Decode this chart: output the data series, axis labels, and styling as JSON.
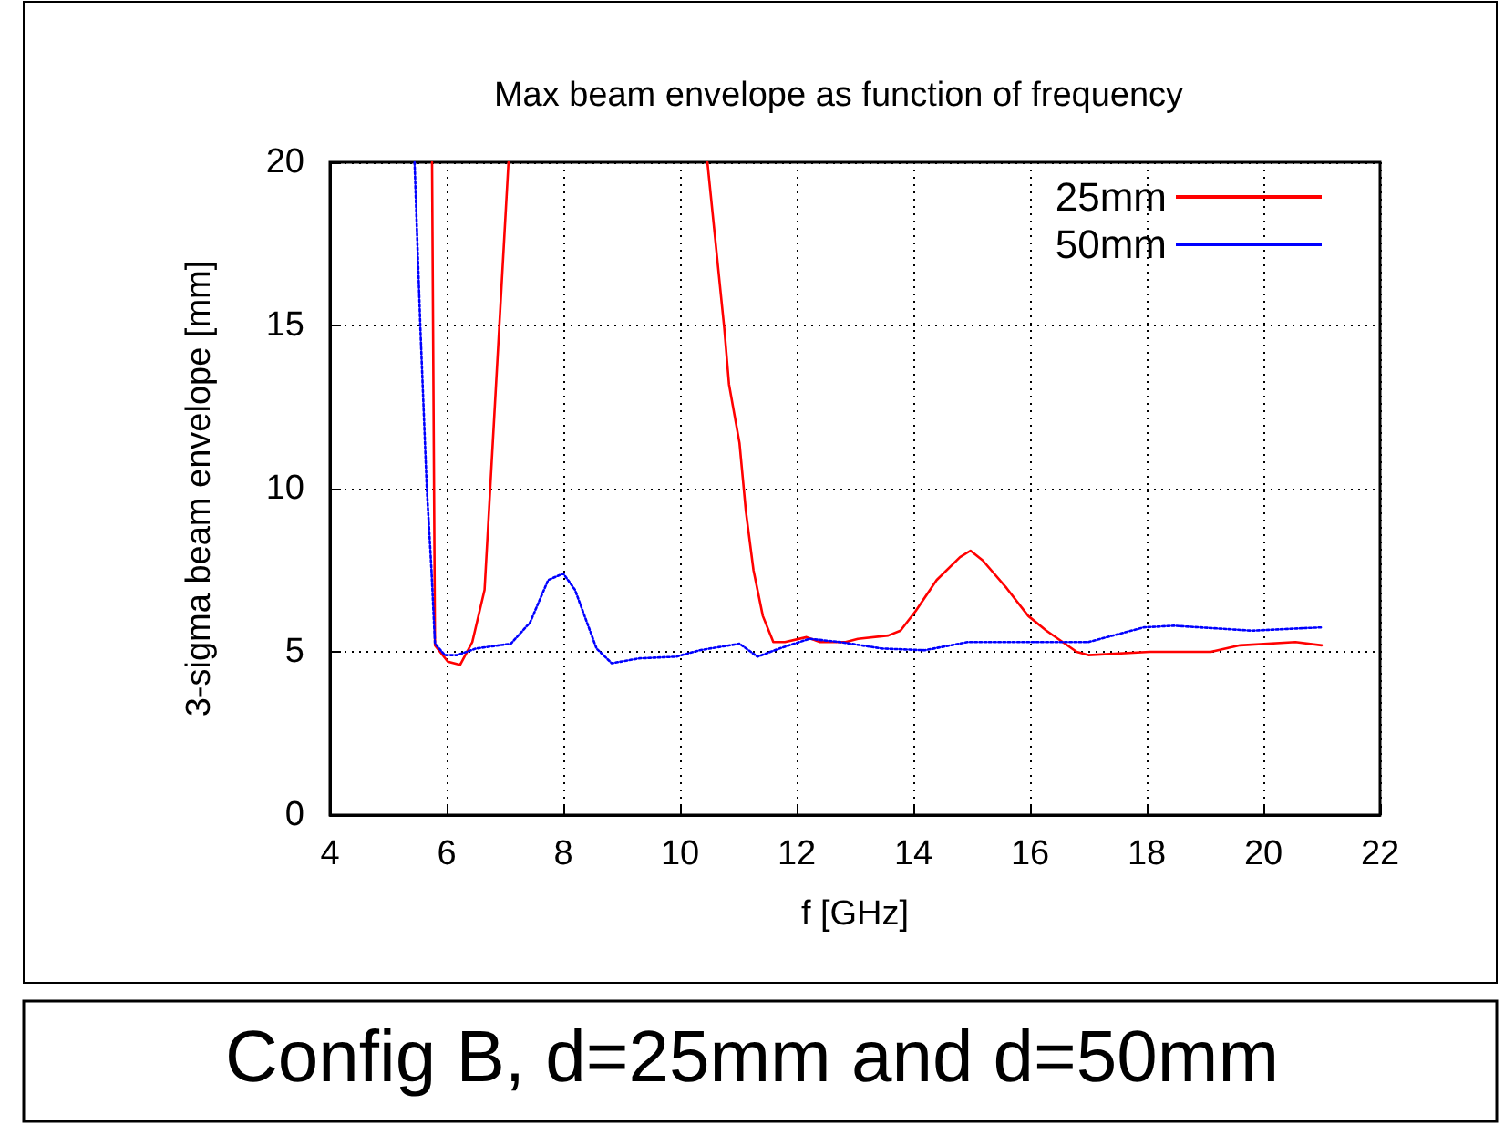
{
  "chart_data": {
    "type": "line",
    "title": "Max beam envelope as function of frequency",
    "xlabel": "f [GHz]",
    "ylabel": "3-sigma beam envelope [mm]",
    "xlim": [
      4,
      22
    ],
    "ylim": [
      0,
      20
    ],
    "xticks": [
      4,
      6,
      8,
      10,
      12,
      14,
      16,
      18,
      20,
      22
    ],
    "yticks": [
      0,
      5,
      10,
      15,
      20
    ],
    "grid": true,
    "legend": "top right",
    "marker": "none",
    "annotations": [
      "Config B, d=25mm and d=50mm"
    ],
    "series": [
      {
        "name": "25mm",
        "color": "#ff0000",
        "line_style": "solid",
        "x": [
          5.75,
          5.8,
          6.02,
          6.23,
          6.44,
          6.65,
          6.9,
          7.06,
          8.8,
          10.47,
          10.76,
          10.84,
          11.02,
          11.13,
          11.26,
          11.42,
          11.6,
          11.8,
          12.17,
          12.4,
          12.84,
          13.05,
          13.57,
          13.78,
          14.04,
          14.4,
          14.8,
          14.98,
          15.19,
          15.6,
          15.97,
          16.28,
          16.8,
          17.0,
          18.05,
          19.1,
          19.6,
          20.55,
          21.0
        ],
        "values": [
          20,
          5.2,
          4.7,
          4.6,
          5.3,
          6.9,
          14.9,
          20,
          null,
          20,
          14.9,
          13.2,
          11.4,
          9.3,
          7.5,
          6.1,
          5.3,
          5.3,
          5.45,
          5.3,
          5.3,
          5.4,
          5.5,
          5.65,
          6.25,
          7.2,
          7.9,
          8.1,
          7.8,
          6.95,
          6.1,
          5.65,
          5.0,
          4.9,
          5.0,
          5.0,
          5.2,
          5.3,
          5.2
        ]
      },
      {
        "name": "50mm",
        "color": "#0000ff",
        "line_style": "dotted",
        "x": [
          5.45,
          5.55,
          5.66,
          5.74,
          5.8,
          5.97,
          6.18,
          6.5,
          7.1,
          7.43,
          7.74,
          8.0,
          8.2,
          8.57,
          8.83,
          9.3,
          9.93,
          10.34,
          11.02,
          11.33,
          11.7,
          12.22,
          12.74,
          13.47,
          14.2,
          14.93,
          16.28,
          17.0,
          17.95,
          18.47,
          19.8,
          21.0
        ],
        "values": [
          20,
          14.9,
          10.0,
          7.5,
          5.25,
          4.9,
          4.9,
          5.1,
          5.25,
          5.9,
          7.2,
          7.4,
          6.9,
          5.1,
          4.65,
          4.8,
          4.85,
          5.05,
          5.25,
          4.85,
          5.1,
          5.4,
          5.3,
          5.1,
          5.05,
          5.3,
          5.3,
          5.3,
          5.75,
          5.8,
          5.65,
          5.75
        ]
      }
    ]
  }
}
